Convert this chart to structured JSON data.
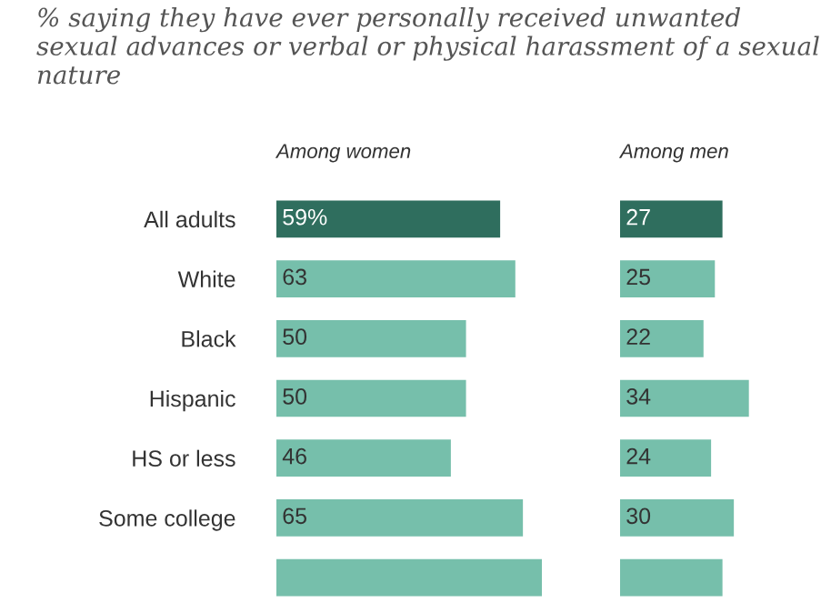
{
  "chart_data": [
    {
      "type": "bar",
      "orientation": "horizontal",
      "subtitle": "% saying they have ever personally received unwanted sexual advances or verbal or physical harassment of a sexual nature",
      "title": "Among women",
      "tick_labels": "y",
      "categories": [
        "All adults",
        "White",
        "Black",
        "Hispanic",
        "HS or less",
        "Some college",
        null
      ],
      "values": [
        59,
        63,
        50,
        50,
        46,
        65,
        70
      ],
      "colors": [
        "#2f6e5e",
        "#76bfab",
        "#76bfab",
        "#76bfab",
        "#76bfab",
        "#76bfab",
        "#76bfab"
      ],
      "value_labels": [
        "59%",
        "63",
        "50",
        "50",
        "46",
        "65",
        null
      ]
    },
    {
      "type": "bar",
      "orientation": "horizontal",
      "title": "Among men",
      "tick_labels": false,
      "values": [
        27,
        25,
        22,
        34,
        24,
        30,
        27
      ],
      "colors": [
        "#2f6e5e",
        "#76bfab",
        "#76bfab",
        "#76bfab",
        "#76bfab",
        "#76bfab",
        "#76bfab"
      ],
      "value_labels": [
        "27",
        "25",
        "22",
        "34",
        "24",
        "30",
        null
      ]
    }
  ]
}
